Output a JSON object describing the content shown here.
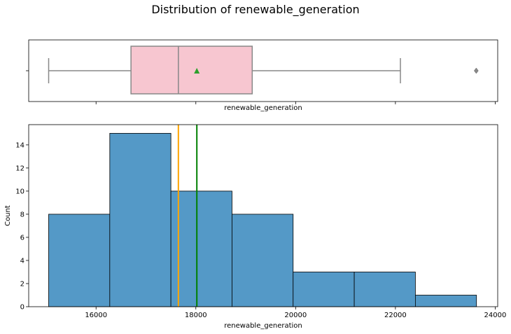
{
  "chart_data": [
    {
      "type": "box",
      "title": "Distribution of renewable_generation",
      "xlabel": "renewable_generation",
      "xlim": [
        14650,
        24050
      ],
      "box": {
        "whisker_low": 15050,
        "q1": 16700,
        "median": 17650,
        "mean": 18020,
        "q3": 19130,
        "whisker_high": 22100,
        "outliers": [
          23620
        ]
      },
      "colors": {
        "box": "#f7c6d0",
        "edge": "#888888",
        "mean": "#2ca02c"
      }
    },
    {
      "type": "histogram",
      "xlabel": "renewable_generation",
      "ylabel": "Count",
      "xlim": [
        14650,
        24050
      ],
      "ylim": [
        0,
        15.75
      ],
      "x_ticks": [
        16000,
        18000,
        20000,
        22000,
        24000
      ],
      "y_ticks": [
        0,
        2,
        4,
        6,
        8,
        10,
        12,
        14
      ],
      "bins": [
        {
          "start": 15050,
          "end": 16275,
          "count": 8
        },
        {
          "start": 16275,
          "end": 17500,
          "count": 15
        },
        {
          "start": 17500,
          "end": 18725,
          "count": 10
        },
        {
          "start": 18725,
          "end": 19950,
          "count": 8
        },
        {
          "start": 19950,
          "end": 21175,
          "count": 3
        },
        {
          "start": 21175,
          "end": 22400,
          "count": 3
        },
        {
          "start": 22400,
          "end": 23625,
          "count": 1
        }
      ],
      "reference_lines": [
        {
          "label": "median",
          "value": 17650,
          "color": "#ffa500"
        },
        {
          "label": "mean",
          "value": 18020,
          "color": "#008000"
        }
      ],
      "colors": {
        "bar": "#5499c7",
        "edge": "#000000"
      }
    }
  ]
}
